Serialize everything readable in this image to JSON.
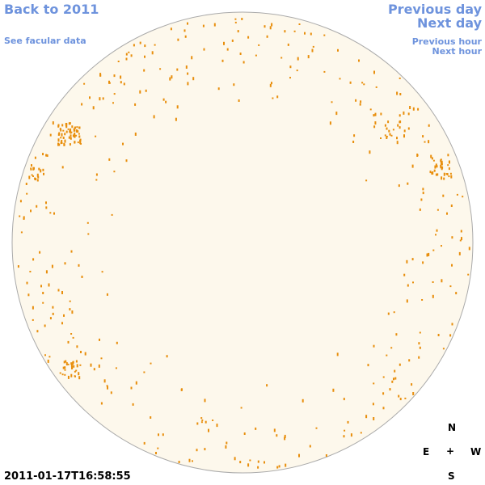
{
  "links": {
    "back": "Back to 2011",
    "facular": "See facular data",
    "previous_day": "Previous day",
    "next_day": "Next day",
    "previous_hour": "Previous hour",
    "next_hour": "Next hour"
  },
  "timestamp": "2011-01-17T16:58:55",
  "compass": {
    "north": "N",
    "east": "E",
    "center": "+",
    "west": "W",
    "south": "S"
  }
}
